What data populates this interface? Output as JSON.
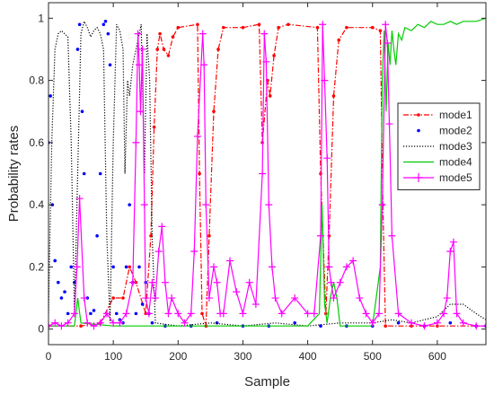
{
  "chart_data": {
    "type": "line",
    "xlabel": "Sample",
    "ylabel": "Probability rates",
    "xlim": [
      0,
      675
    ],
    "ylim": [
      -0.05,
      1.05
    ],
    "xticks": [
      0,
      100,
      200,
      300,
      400,
      500,
      600
    ],
    "yticks": [
      0,
      0.2,
      0.4,
      0.6,
      0.8,
      1
    ],
    "grid": false,
    "legend_position": "right",
    "series": [
      {
        "name": "mode1",
        "color": "#ff0000",
        "style": "dash-dot with dot markers",
        "x": [
          0,
          50,
          80,
          100,
          115,
          125,
          135,
          150,
          158,
          163,
          168,
          172,
          178,
          185,
          192,
          200,
          230,
          233,
          237,
          243,
          248,
          255,
          262,
          270,
          300,
          325,
          330,
          338,
          342,
          348,
          355,
          370,
          415,
          420,
          428,
          433,
          440,
          448,
          460,
          500,
          512,
          516,
          520,
          560,
          600,
          675
        ],
        "y": [
          0.01,
          0.01,
          0.02,
          0.1,
          0.1,
          0.2,
          0.15,
          0.05,
          0.3,
          0.65,
          0.9,
          0.95,
          0.9,
          0.88,
          0.94,
          0.97,
          0.98,
          0.5,
          0.05,
          0.01,
          0.3,
          0.7,
          0.9,
          0.97,
          0.97,
          0.98,
          0.6,
          0.8,
          0.75,
          0.88,
          0.97,
          0.98,
          0.97,
          0.5,
          0.05,
          0.3,
          0.75,
          0.93,
          0.97,
          0.97,
          0.96,
          0.4,
          0.01,
          0.01,
          0.01,
          0.01
        ]
      },
      {
        "name": "mode2",
        "color": "#0000ff",
        "style": "dots",
        "x": [
          0,
          3,
          6,
          10,
          15,
          20,
          25,
          30,
          35,
          40,
          45,
          48,
          52,
          55,
          60,
          65,
          70,
          75,
          80,
          85,
          88,
          92,
          95,
          100,
          105,
          110,
          115,
          120,
          125,
          130,
          135,
          140,
          145,
          150,
          155,
          160,
          180,
          220,
          260,
          300,
          340,
          380,
          420,
          460,
          500,
          540,
          580,
          620,
          660,
          675
        ],
        "y": [
          0.6,
          0.75,
          0.4,
          0.22,
          0.15,
          0.1,
          0.12,
          0.05,
          0.2,
          0.15,
          0.9,
          0.98,
          0.7,
          0.5,
          0.1,
          0.05,
          0.06,
          0.3,
          0.5,
          0.98,
          0.99,
          0.95,
          0.85,
          0.2,
          0.05,
          0.03,
          0.02,
          0.2,
          0.4,
          0.15,
          0.05,
          0.2,
          0.08,
          0.15,
          0.05,
          0.02,
          0.01,
          0.01,
          0.02,
          0.01,
          0.01,
          0.02,
          0.01,
          0.01,
          0.01,
          0.02,
          0.01,
          0.02,
          0.01,
          0.01
        ]
      },
      {
        "name": "mode3",
        "color": "#000000",
        "style": "dotted",
        "x": [
          0,
          5,
          10,
          15,
          20,
          30,
          35,
          40,
          45,
          50,
          55,
          60,
          65,
          70,
          75,
          80,
          85,
          90,
          95,
          100,
          105,
          110,
          115,
          118,
          122,
          125,
          130,
          135,
          140,
          143,
          148,
          152,
          156,
          160,
          165,
          200,
          250,
          300,
          350,
          400,
          450,
          500,
          530,
          560,
          600,
          620,
          640,
          660,
          675
        ],
        "y": [
          0.05,
          0.6,
          0.9,
          0.95,
          0.96,
          0.94,
          0.6,
          0.05,
          0.5,
          0.95,
          0.99,
          0.97,
          0.94,
          0.96,
          0.97,
          0.95,
          0.9,
          0.3,
          0.02,
          0.6,
          0.98,
          0.96,
          0.9,
          0.5,
          0.8,
          0.75,
          0.85,
          0.9,
          0.95,
          0.98,
          0.5,
          0.95,
          0.8,
          0.3,
          0.02,
          0.01,
          0.02,
          0.01,
          0.02,
          0.01,
          0.02,
          0.02,
          0.03,
          0.02,
          0.04,
          0.08,
          0.08,
          0.05,
          0.03
        ]
      },
      {
        "name": "mode4",
        "color": "#00cc00",
        "style": "solid",
        "x": [
          0,
          40,
          45,
          50,
          100,
          200,
          300,
          400,
          418,
          422,
          426,
          430,
          435,
          440,
          445,
          450,
          500,
          512,
          515,
          518,
          521,
          524,
          527,
          530,
          533,
          536,
          540,
          545,
          550,
          560,
          570,
          580,
          590,
          600,
          610,
          620,
          630,
          640,
          650,
          660,
          675
        ],
        "y": [
          0.01,
          0.01,
          0.1,
          0.02,
          0.01,
          0.01,
          0.01,
          0.01,
          0.05,
          0.4,
          0.08,
          0.02,
          0.1,
          0.15,
          0.1,
          0.01,
          0.01,
          0.2,
          0.8,
          0.96,
          0.7,
          0.92,
          0.85,
          0.96,
          0.9,
          0.85,
          0.95,
          0.93,
          0.97,
          0.96,
          0.98,
          0.97,
          0.99,
          0.98,
          0.98,
          0.99,
          0.98,
          0.99,
          0.99,
          0.99,
          1.0
        ]
      },
      {
        "name": "mode5",
        "color": "#ff00ff",
        "style": "plus markers",
        "x": [
          0,
          10,
          20,
          30,
          40,
          44,
          48,
          55,
          60,
          70,
          80,
          90,
          100,
          110,
          120,
          130,
          135,
          138,
          140,
          142,
          145,
          148,
          150,
          155,
          160,
          165,
          170,
          175,
          180,
          185,
          190,
          200,
          210,
          220,
          225,
          230,
          238,
          240,
          243,
          248,
          255,
          260,
          265,
          270,
          280,
          290,
          300,
          310,
          320,
          330,
          333,
          336,
          340,
          345,
          350,
          360,
          380,
          400,
          410,
          420,
          423,
          426,
          430,
          433,
          436,
          440,
          450,
          460,
          470,
          480,
          490,
          500,
          510,
          515,
          520,
          523,
          526,
          530,
          540,
          560,
          580,
          600,
          610,
          615,
          620,
          625,
          630,
          640,
          660,
          675
        ],
        "y": [
          0.01,
          0.02,
          0.01,
          0.02,
          0.05,
          0.2,
          0.42,
          0.1,
          0.02,
          0.01,
          0.02,
          0.05,
          0.02,
          0.02,
          0.05,
          0.15,
          0.6,
          0.95,
          0.85,
          0.7,
          0.9,
          0.4,
          0.1,
          0.05,
          0.15,
          0.1,
          0.25,
          0.33,
          0.15,
          0.05,
          0.1,
          0.05,
          0.02,
          0.05,
          0.25,
          0.62,
          0.95,
          0.85,
          0.4,
          0.1,
          0.2,
          0.15,
          0.05,
          0.05,
          0.22,
          0.12,
          0.05,
          0.15,
          0.08,
          0.5,
          0.95,
          0.86,
          0.4,
          0.2,
          0.1,
          0.05,
          0.1,
          0.05,
          0.05,
          0.3,
          0.98,
          0.8,
          0.55,
          0.2,
          0.15,
          0.1,
          0.15,
          0.2,
          0.22,
          0.1,
          0.05,
          0.02,
          0.05,
          0.4,
          0.98,
          0.92,
          0.66,
          0.3,
          0.05,
          0.02,
          0.01,
          0.02,
          0.05,
          0.1,
          0.25,
          0.28,
          0.05,
          0.02,
          0.01,
          0.01
        ]
      }
    ]
  }
}
